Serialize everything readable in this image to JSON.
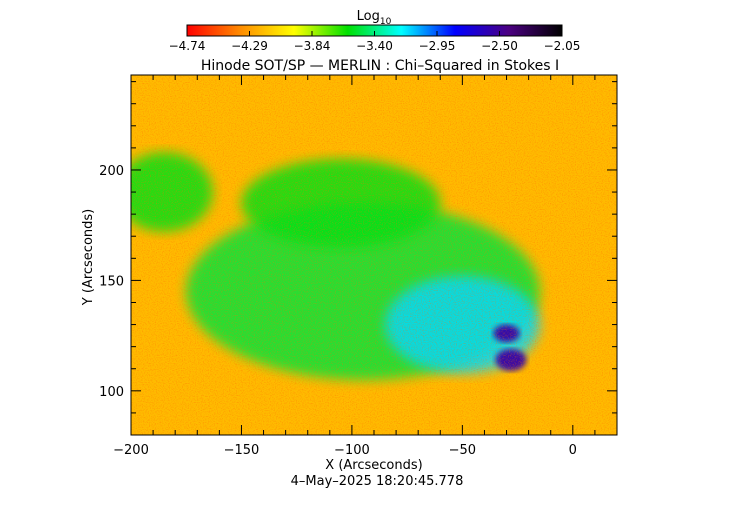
{
  "chart_data": {
    "type": "heatmap",
    "title": "Hinode SOT/SP — MERLIN : Chi–Squared in Stokes I",
    "timestamp": "4–May–2025 18:20:45.778",
    "xlabel": "X (Arcseconds)",
    "ylabel": "Y (Arcseconds)",
    "xlim": [
      -200,
      20
    ],
    "ylim": [
      80,
      243
    ],
    "x_ticks": [
      -200,
      -150,
      -100,
      -50,
      0
    ],
    "x_tick_labels": [
      "−200",
      "−150",
      "−100",
      "−50",
      "0"
    ],
    "y_ticks": [
      100,
      150,
      200
    ],
    "y_tick_labels": [
      "100",
      "150",
      "200"
    ],
    "colorbar": {
      "label_base": "Log",
      "label_sub": "10",
      "range": [
        -4.74,
        -2.05
      ],
      "tick_labels": [
        "−4.74",
        "−4.29",
        "−3.84",
        "−3.40",
        "−2.95",
        "−2.50",
        "−2.05"
      ],
      "stops": [
        "#ff0000",
        "#ff8c00",
        "#ffff00",
        "#00e000",
        "#00ffff",
        "#0000ff",
        "#4b0082",
        "#000000"
      ]
    },
    "background_level": -4.2,
    "features": [
      {
        "name": "green-region-left",
        "x": -185,
        "y": 190,
        "rx": 22,
        "ry": 18,
        "level": -3.55
      },
      {
        "name": "green-region-center",
        "x": -95,
        "y": 145,
        "rx": 80,
        "ry": 40,
        "level": -3.5
      },
      {
        "name": "green-region-upper",
        "x": -105,
        "y": 185,
        "rx": 45,
        "ry": 20,
        "level": -3.55
      },
      {
        "name": "cyan-region",
        "x": -50,
        "y": 130,
        "rx": 35,
        "ry": 22,
        "level": -3.15
      },
      {
        "name": "sunspot-umbra-1",
        "x": -30,
        "y": 126,
        "rx": 6,
        "ry": 4,
        "level": -2.55
      },
      {
        "name": "sunspot-umbra-2",
        "x": -28,
        "y": 114,
        "rx": 7,
        "ry": 5,
        "level": -2.55
      }
    ]
  }
}
